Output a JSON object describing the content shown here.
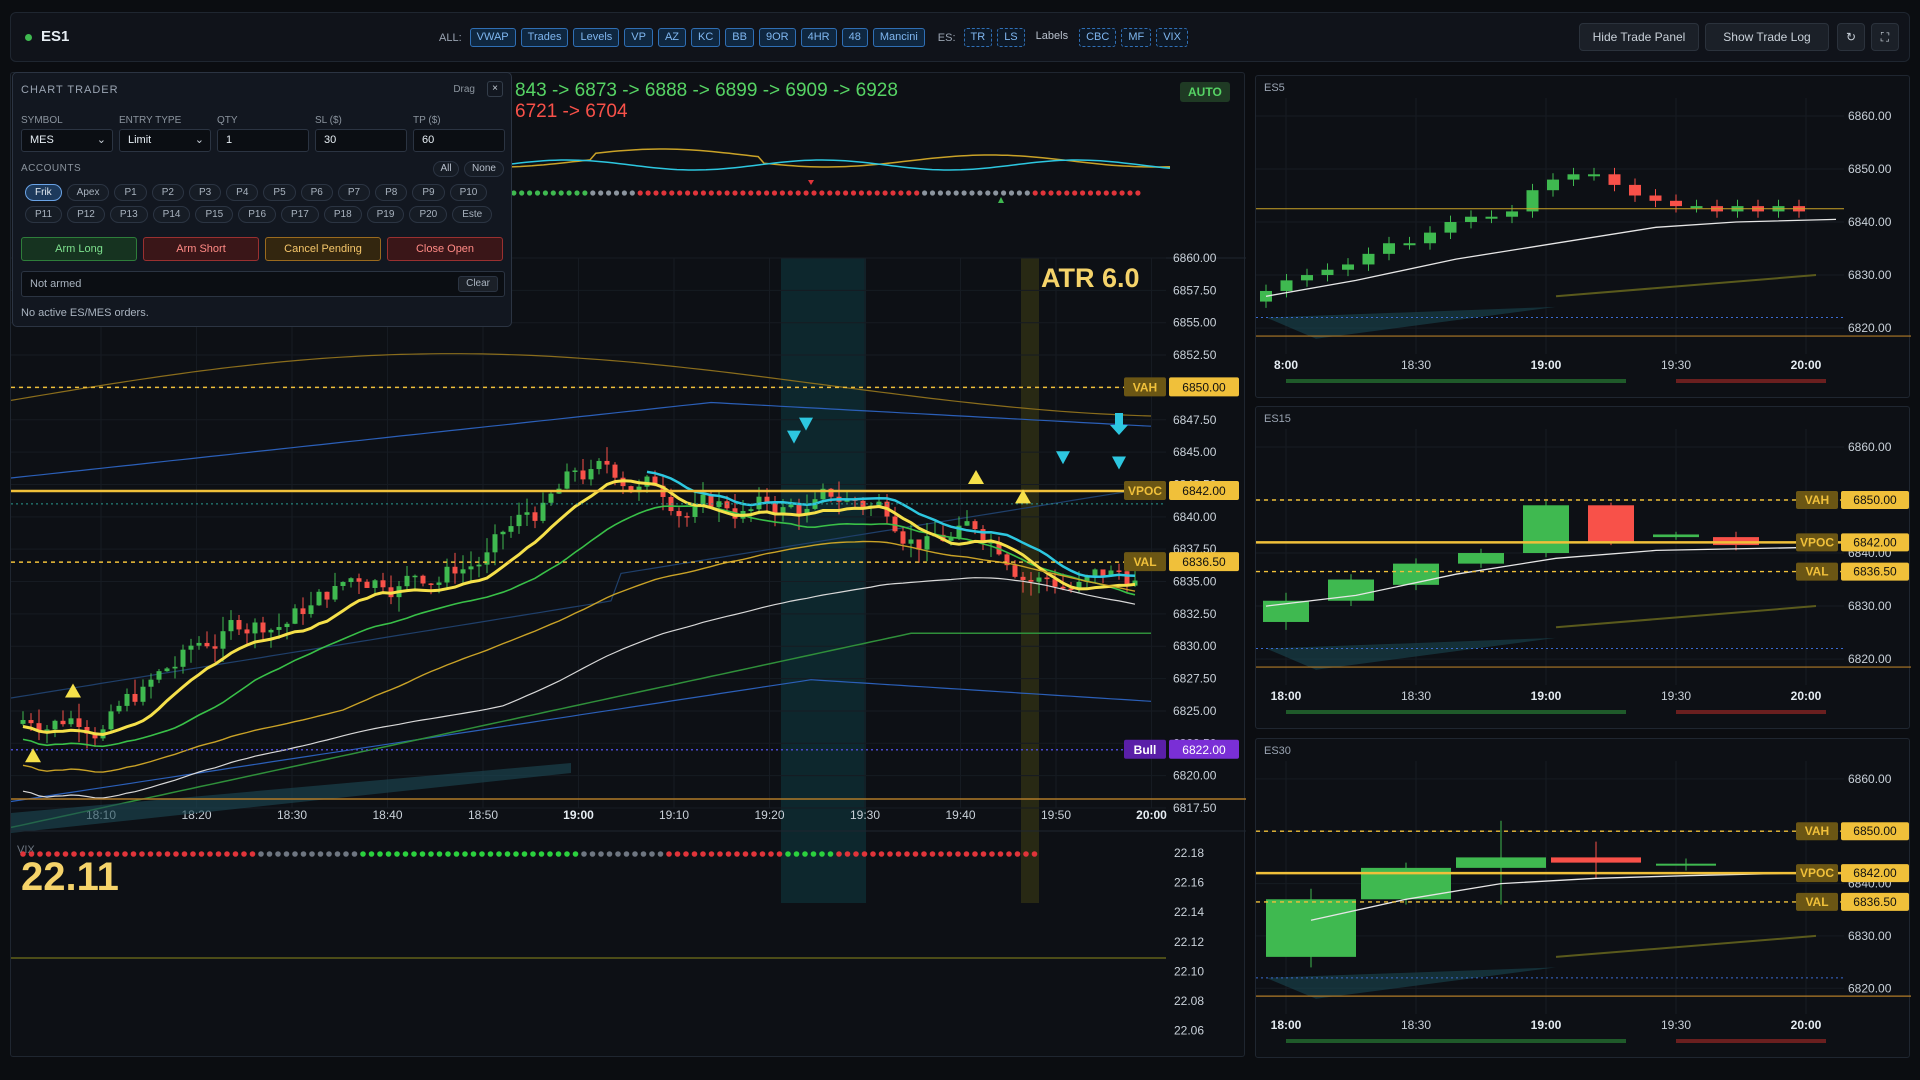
{
  "header": {
    "title": "ES1"
  },
  "toggles": {
    "all_label": "ALL:",
    "all": [
      "VWAP",
      "Trades",
      "Levels",
      "VP",
      "AZ",
      "KC",
      "BB",
      "9OR",
      "4HR",
      "48",
      "Mancini"
    ],
    "es_label": "ES:",
    "es": [
      {
        "label": "TR",
        "style": "dash"
      },
      {
        "label": "LS",
        "style": "dash"
      },
      {
        "label": "Labels",
        "style": "plain"
      },
      {
        "label": "CBC",
        "style": "dash"
      },
      {
        "label": "MF",
        "style": "dash"
      },
      {
        "label": "VIX",
        "style": "dash"
      }
    ]
  },
  "buttons": {
    "hide_trade_panel": "Hide Trade Panel",
    "show_trade_log": "Show Trade Log",
    "refresh": "↻",
    "fullscreen": "⛶"
  },
  "trader": {
    "title": "CHART TRADER",
    "drag": "Drag",
    "close": "×",
    "symbol_label": "SYMBOL",
    "symbol": "MES",
    "entry_label": "ENTRY TYPE",
    "entry": "Limit",
    "qty_label": "QTY",
    "qty": "1",
    "sl_label": "SL ($)",
    "sl": "30",
    "tp_label": "TP ($)",
    "tp": "60",
    "accounts_label": "ACCOUNTS",
    "all_btn": "All",
    "none_btn": "None",
    "accounts": [
      "Frik",
      "Apex",
      "P1",
      "P2",
      "P3",
      "P4",
      "P5",
      "P6",
      "P7",
      "P8",
      "P9",
      "P10",
      "P11",
      "P12",
      "P13",
      "P14",
      "P15",
      "P16",
      "P17",
      "P18",
      "P19",
      "P20",
      "Este"
    ],
    "active_account": "Frik",
    "arm_long": "Arm Long",
    "arm_short": "Arm Short",
    "cancel_pending": "Cancel Pending",
    "close_open": "Close Open",
    "status": "Not armed",
    "clear": "Clear",
    "orders": "No active ES/MES orders."
  },
  "targets_up": "843 -> 6873 -> 6888 -> 6899 -> 6909 -> 6928",
  "targets_down": "6721 -> 6704",
  "auto_badge": "AUTO",
  "colors": {
    "up": "#3fb950",
    "down": "#f85149",
    "vwap": "#f5e04a",
    "level": "#f0c03a",
    "teal": "#2dc7e0",
    "bull": "#7a2fd6"
  },
  "main_chart": {
    "atr": "ATR 6.0",
    "price_ticks": [
      "6860.00",
      "6857.50",
      "6855.00",
      "6852.50",
      "6850.00",
      "6847.50",
      "6845.00",
      "6842.50",
      "6840.00",
      "6837.50",
      "6835.00",
      "6832.50",
      "6830.00",
      "6827.50",
      "6825.00",
      "6822.50",
      "6820.00",
      "6817.50"
    ],
    "time_ticks": [
      {
        "label": "18:10",
        "bold": false
      },
      {
        "label": "18:20",
        "bold": false
      },
      {
        "label": "18:30",
        "bold": false
      },
      {
        "label": "18:40",
        "bold": false
      },
      {
        "label": "18:50",
        "bold": false
      },
      {
        "label": "19:00",
        "bold": true
      },
      {
        "label": "19:10",
        "bold": false
      },
      {
        "label": "19:20",
        "bold": false
      },
      {
        "label": "19:30",
        "bold": false
      },
      {
        "label": "19:40",
        "bold": false
      },
      {
        "label": "19:50",
        "bold": false
      },
      {
        "label": "20:00",
        "bold": true
      }
    ],
    "levels": [
      {
        "name": "VAH",
        "value": "6850.00"
      },
      {
        "name": "VPOC",
        "value": "6842.00"
      },
      {
        "name": "VAL",
        "value": "6836.50"
      },
      {
        "name": "Bull",
        "value": "6822.00"
      }
    ]
  },
  "vix": {
    "label": "VIX",
    "value": "22.11",
    "ticks": [
      "22.18",
      "22.16",
      "22.14",
      "22.12",
      "22.10",
      "22.08",
      "22.06"
    ]
  },
  "side_charts": [
    {
      "label": "ES5",
      "ticks": [
        "6860.00",
        "6850.00",
        "6840.00",
        "6830.00",
        "6820.00"
      ],
      "times": [
        {
          "label": "8:00",
          "bold": true
        },
        {
          "label": "18:30",
          "bold": false
        },
        {
          "label": "19:00",
          "bold": true
        },
        {
          "label": "19:30",
          "bold": false
        },
        {
          "label": "20:00",
          "bold": true
        }
      ],
      "levels": []
    },
    {
      "label": "ES15",
      "ticks": [
        "6860.00",
        "6850.00",
        "6840.00",
        "6830.00",
        "6820.00"
      ],
      "times": [
        {
          "label": "18:00",
          "bold": true
        },
        {
          "label": "18:30",
          "bold": false
        },
        {
          "label": "19:00",
          "bold": true
        },
        {
          "label": "19:30",
          "bold": false
        },
        {
          "label": "20:00",
          "bold": true
        }
      ],
      "levels": [
        {
          "name": "VAH",
          "value": "6850.00"
        },
        {
          "name": "VPOC",
          "value": "6842.00"
        },
        {
          "name": "VAL",
          "value": "6836.50"
        }
      ]
    },
    {
      "label": "ES30",
      "ticks": [
        "6860.00",
        "6850.00",
        "6840.00",
        "6830.00",
        "6820.00"
      ],
      "times": [
        {
          "label": "18:00",
          "bold": true
        },
        {
          "label": "18:30",
          "bold": false
        },
        {
          "label": "19:00",
          "bold": true
        },
        {
          "label": "19:30",
          "bold": false
        },
        {
          "label": "20:00",
          "bold": true
        }
      ],
      "levels": [
        {
          "name": "VAH",
          "value": "6850.00"
        },
        {
          "name": "VPOC",
          "value": "6842.00"
        },
        {
          "name": "VAL",
          "value": "6836.50"
        }
      ]
    }
  ]
}
